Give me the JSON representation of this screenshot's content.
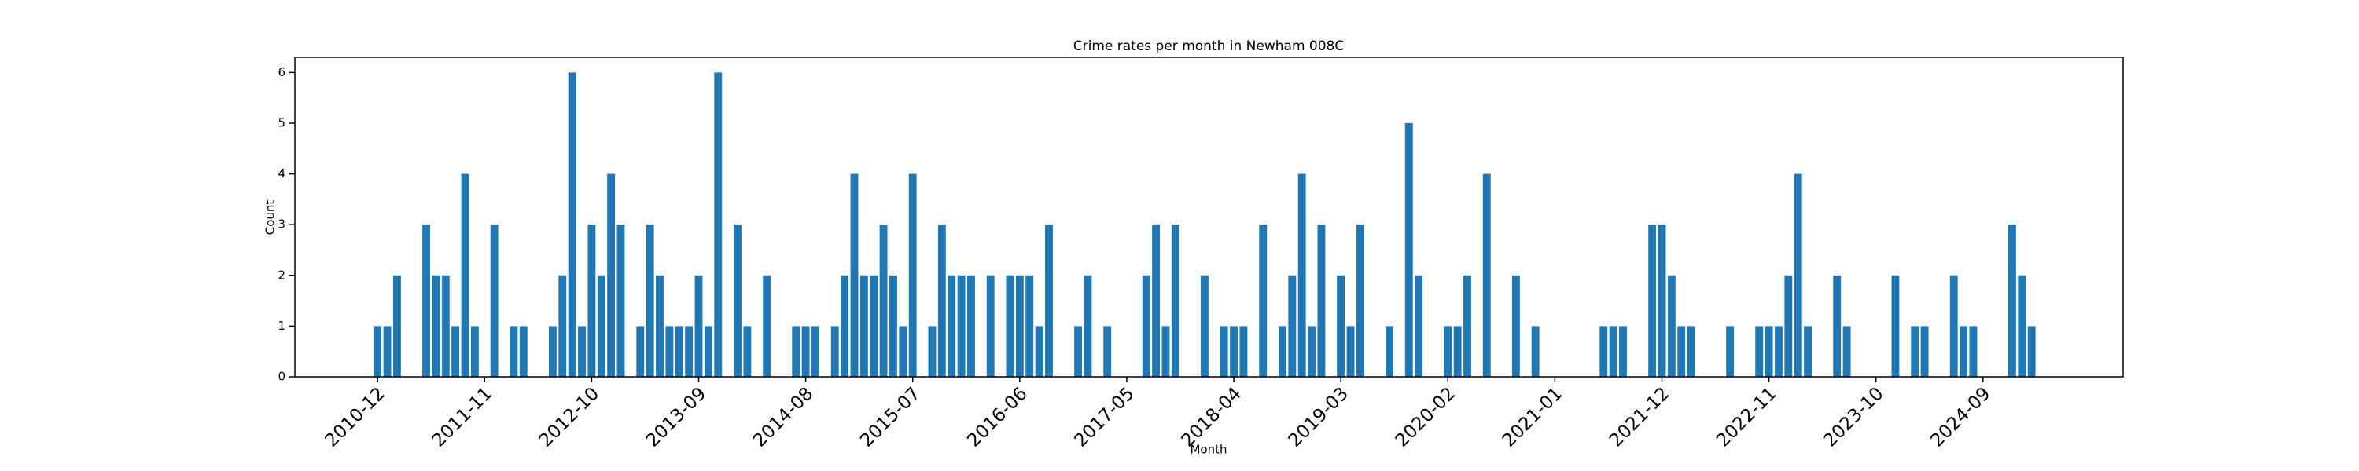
{
  "chart_data": {
    "type": "bar",
    "title": "Crime rates per month in Newham 008C",
    "x_label": "Month",
    "y_label": "Count",
    "color": "#1f77b4",
    "categories": [
      "2010-12",
      null,
      null,
      null,
      null,
      null,
      null,
      null,
      null,
      null,
      null,
      "2011-11",
      null,
      null,
      null,
      null,
      null,
      null,
      null,
      null,
      null,
      null,
      "2012-10",
      null,
      null,
      null,
      null,
      null,
      null,
      null,
      null,
      null,
      null,
      "2013-09",
      null,
      null,
      null,
      null,
      null,
      null,
      null,
      null,
      null,
      null,
      "2014-08",
      null,
      null,
      null,
      null,
      null,
      null,
      null,
      null,
      null,
      null,
      "2015-07",
      null,
      null,
      null,
      null,
      null,
      null,
      null,
      null,
      null,
      null,
      "2016-06",
      null,
      null,
      null,
      null,
      null,
      null,
      null,
      null,
      null,
      null,
      "2017-05",
      null,
      null,
      null,
      null,
      null,
      null,
      null,
      null,
      null,
      null,
      "2018-04",
      null,
      null,
      null,
      null,
      null,
      null,
      null,
      null,
      null,
      null,
      "2019-03",
      null,
      null,
      null,
      null,
      null,
      null,
      null,
      null,
      null,
      null,
      "2020-02",
      null,
      null,
      null,
      null,
      null,
      null,
      null,
      null,
      null,
      null,
      "2021-01",
      null,
      null,
      null,
      null,
      null,
      null,
      null,
      null,
      null,
      null,
      "2021-12",
      null,
      null,
      null,
      null,
      null,
      null,
      null,
      null,
      null,
      null,
      "2022-11",
      null,
      null,
      null,
      null,
      null,
      null,
      null,
      null,
      null,
      null,
      "2023-10",
      null,
      null,
      null,
      null,
      null,
      null,
      null,
      null,
      null,
      null,
      "2024-09",
      null,
      null,
      null,
      null,
      null
    ],
    "values": [
      1,
      1,
      2,
      null,
      null,
      3,
      2,
      2,
      1,
      4,
      1,
      null,
      3,
      null,
      1,
      1,
      null,
      null,
      1,
      2,
      6,
      1,
      3,
      2,
      4,
      3,
      null,
      1,
      3,
      2,
      1,
      1,
      1,
      2,
      1,
      6,
      null,
      3,
      1,
      null,
      2,
      null,
      null,
      1,
      1,
      1,
      null,
      1,
      2,
      4,
      2,
      2,
      3,
      2,
      1,
      4,
      null,
      1,
      3,
      2,
      2,
      2,
      null,
      2,
      null,
      2,
      2,
      2,
      1,
      3,
      null,
      null,
      1,
      2,
      null,
      1,
      null,
      null,
      null,
      2,
      3,
      1,
      3,
      null,
      null,
      2,
      null,
      1,
      1,
      1,
      null,
      3,
      null,
      1,
      2,
      4,
      1,
      3,
      null,
      2,
      1,
      3,
      null,
      null,
      1,
      null,
      5,
      2,
      null,
      null,
      1,
      1,
      2,
      null,
      4,
      null,
      null,
      2,
      null,
      1,
      null,
      null,
      null,
      null,
      null,
      null,
      1,
      1,
      1,
      null,
      null,
      3,
      3,
      2,
      1,
      1,
      null,
      null,
      null,
      1,
      null,
      null,
      1,
      1,
      1,
      2,
      4,
      1,
      null,
      null,
      2,
      1,
      null,
      null,
      null,
      null,
      2,
      null,
      1,
      1,
      null,
      null,
      2,
      1,
      1,
      null,
      null,
      null,
      3,
      2,
      1
    ],
    "ylim": [
      0,
      6.3
    ],
    "yticks": [
      0,
      1,
      2,
      3,
      4,
      5,
      6
    ]
  }
}
